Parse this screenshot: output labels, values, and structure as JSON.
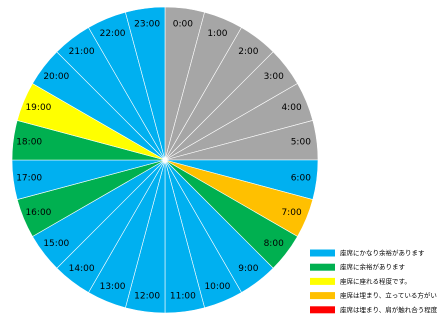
{
  "chart_data": {
    "type": "pie",
    "categories": [
      "0:00",
      "1:00",
      "2:00",
      "3:00",
      "4:00",
      "5:00",
      "6:00",
      "7:00",
      "8:00",
      "9:00",
      "10:00",
      "11:00",
      "12:00",
      "13:00",
      "14:00",
      "15:00",
      "16:00",
      "17:00",
      "18:00",
      "19:00",
      "20:00",
      "21:00",
      "22:00",
      "23:00"
    ],
    "values": [
      1,
      1,
      1,
      1,
      1,
      1,
      1,
      1,
      1,
      1,
      1,
      1,
      1,
      1,
      1,
      1,
      1,
      1,
      1,
      1,
      1,
      1,
      1,
      1
    ],
    "colors": [
      "#a6a6a6",
      "#a6a6a6",
      "#a6a6a6",
      "#a6a6a6",
      "#a6a6a6",
      "#a6a6a6",
      "#00b0f0",
      "#ffc000",
      "#00b050",
      "#00b0f0",
      "#00b0f0",
      "#00b0f0",
      "#00b0f0",
      "#00b0f0",
      "#00b0f0",
      "#00b0f0",
      "#00b050",
      "#00b0f0",
      "#00b050",
      "#ffff00",
      "#00b0f0",
      "#00b0f0",
      "#00b0f0",
      "#00b0f0"
    ],
    "legend": [
      {
        "name": "座席にかなり余裕があります",
        "color": "#00b0f0"
      },
      {
        "name": "座席に余裕があります",
        "color": "#00b050"
      },
      {
        "name": "座席に座れる程度です。",
        "color": "#ffff00"
      },
      {
        "name": "座席は埋まり、立っている方がいます",
        "color": "#ffc000"
      },
      {
        "name": "座席は埋まり、肩が触れ合う程度です",
        "color": "#ff0000"
      }
    ]
  }
}
